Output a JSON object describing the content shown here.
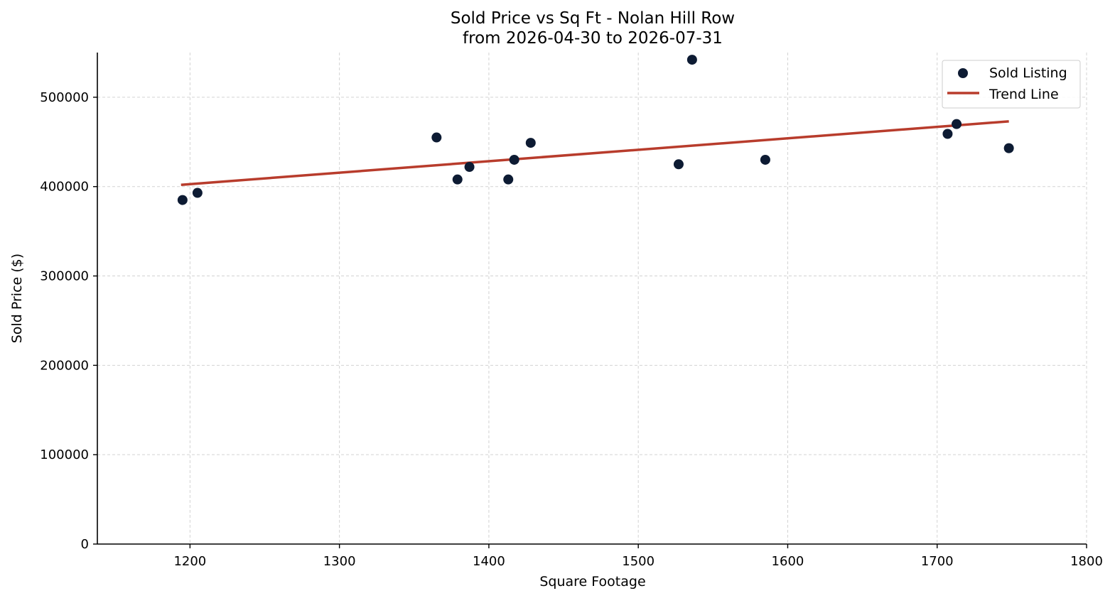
{
  "chart_data": {
    "type": "scatter",
    "title": "Sold Price vs Sq Ft - Nolan Hill Row",
    "subtitle": "from 2026-04-30 to 2026-07-31",
    "xlabel": "Square Footage",
    "ylabel": "Sold Price ($)",
    "xlim": [
      1138,
      1800
    ],
    "ylim": [
      0,
      550000
    ],
    "x_ticks": [
      1200,
      1300,
      1400,
      1500,
      1600,
      1700,
      1800
    ],
    "y_ticks": [
      0,
      100000,
      200000,
      300000,
      400000,
      500000
    ],
    "x_tick_labels": [
      "1200",
      "1300",
      "1400",
      "1500",
      "1600",
      "1700",
      "1800"
    ],
    "y_tick_labels": [
      "0",
      "100000",
      "200000",
      "300000",
      "400000",
      "500000"
    ],
    "grid": true,
    "legend_position": "top-right",
    "series": [
      {
        "name": "Sold Listing",
        "kind": "scatter",
        "color": "#0d1b33",
        "points": [
          {
            "x": 1195,
            "y": 385000
          },
          {
            "x": 1205,
            "y": 393000
          },
          {
            "x": 1365,
            "y": 455000
          },
          {
            "x": 1379,
            "y": 408000
          },
          {
            "x": 1387,
            "y": 422000
          },
          {
            "x": 1413,
            "y": 408000
          },
          {
            "x": 1417,
            "y": 430000
          },
          {
            "x": 1428,
            "y": 449000
          },
          {
            "x": 1527,
            "y": 425000
          },
          {
            "x": 1536,
            "y": 542000
          },
          {
            "x": 1585,
            "y": 430000
          },
          {
            "x": 1707,
            "y": 459000
          },
          {
            "x": 1713,
            "y": 470000
          },
          {
            "x": 1748,
            "y": 443000
          }
        ]
      },
      {
        "name": "Trend Line",
        "kind": "line",
        "color": "#b83c2c",
        "points": [
          {
            "x": 1194,
            "y": 402000
          },
          {
            "x": 1748,
            "y": 473000
          }
        ]
      }
    ]
  }
}
